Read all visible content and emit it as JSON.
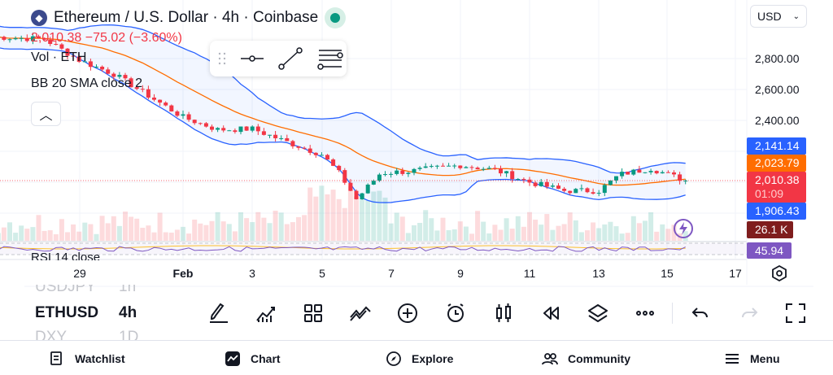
{
  "header": {
    "title": "Ethereum / U.S. Dollar · 4h · Coinbase",
    "last_price": "2,010.38",
    "change": "−75.02 (−3.60%)",
    "currency": "USD"
  },
  "legend": {
    "volume": "Vol · ETH",
    "bb": "BB 20 SMA close 2",
    "rsi": "RSI 14 close"
  },
  "price_axis": {
    "ticks": [
      "2,800.00",
      "2,600.00",
      "2,400.00"
    ],
    "bb_upper": "2,141.14",
    "bb_basis": "2,023.79",
    "last": "2,010.38",
    "countdown": "01:09",
    "bb_lower": "1,906.43",
    "volume": "26.1 K",
    "rsi": "45.94"
  },
  "colors": {
    "up": "#089981",
    "down": "#f23645",
    "bb_band": "#2962ff",
    "bb_basis": "#ff6d00",
    "volume_tag": "#7f1d1d",
    "rsi": "#7e57c2"
  },
  "date_axis": [
    "29",
    "Feb",
    "3",
    "5",
    "7",
    "9",
    "11",
    "13",
    "15",
    "17"
  ],
  "watchlist": [
    {
      "symbol": "USDJPY",
      "interval": "1h"
    },
    {
      "symbol": "ETHUSD",
      "interval": "4h"
    },
    {
      "symbol": "DXY",
      "interval": "1D"
    }
  ],
  "toolbar": [
    "brush-icon",
    "indicators-icon",
    "layout-grid-icon",
    "patterns-icon",
    "add-icon",
    "alert-icon",
    "candles-icon",
    "replay-icon",
    "layers-icon",
    "more-icon",
    "undo-icon",
    "redo-icon",
    "fullscreen-icon"
  ],
  "bottom_nav": [
    {
      "label": "Watchlist",
      "icon": "watchlist-icon"
    },
    {
      "label": "Chart",
      "icon": "chart-icon"
    },
    {
      "label": "Explore",
      "icon": "compass-icon"
    },
    {
      "label": "Community",
      "icon": "community-icon"
    },
    {
      "label": "Menu",
      "icon": "menu-icon"
    }
  ],
  "chart_data": {
    "type": "candlestick",
    "interval": "4h",
    "y_ticks": [
      2400,
      2600,
      2800
    ],
    "close_path": [
      {
        "date": "Jan 27.5",
        "close": 2940
      },
      {
        "date": "Jan 29",
        "close": 2926
      },
      {
        "date": "Jan 30",
        "close": 2790
      },
      {
        "date": "Jan 31",
        "close": 2700
      },
      {
        "date": "Feb 1",
        "close": 2420
      },
      {
        "date": "Feb 2",
        "close": 2340
      },
      {
        "date": "Feb 3",
        "close": 2345
      },
      {
        "date": "Feb 4",
        "close": 2260
      },
      {
        "date": "Feb 5",
        "close": 2180
      },
      {
        "date": "Feb 5.5",
        "close": 2060
      },
      {
        "date": "Feb 6",
        "close": 1890
      },
      {
        "date": "Feb 6.7",
        "close": 2060
      },
      {
        "date": "Feb 7.5",
        "close": 2070
      },
      {
        "date": "Feb 9",
        "close": 2110
      },
      {
        "date": "Feb 10",
        "close": 2080
      },
      {
        "date": "Feb 11",
        "close": 2000
      },
      {
        "date": "Feb 12",
        "close": 1945
      },
      {
        "date": "Feb 13",
        "close": 1945
      },
      {
        "date": "Feb 13.6",
        "close": 2050
      },
      {
        "date": "Feb 14.5",
        "close": 2090
      },
      {
        "date": "Feb 15.5",
        "close": 2010
      }
    ],
    "last_volume": "26.1 K",
    "rsi_last": 45.94
  }
}
